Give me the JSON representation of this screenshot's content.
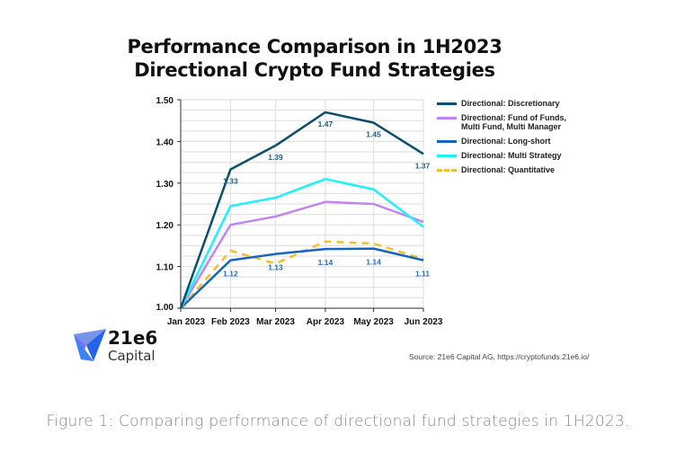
{
  "chart_data": {
    "type": "line",
    "title": [
      "Performance Comparison in 1H2023",
      "Directional Crypto Fund Strategies"
    ],
    "categories": [
      "Jan 2023",
      "Feb 2023",
      "Mar 2023",
      "Apr 2023",
      "May 2023",
      "Jun 2023"
    ],
    "x_days": [
      0,
      31,
      59,
      90,
      120,
      151
    ],
    "ylim": [
      1.0,
      1.5
    ],
    "yticks": [
      "1.00",
      "1.10",
      "1.20",
      "1.30",
      "1.40",
      "1.50"
    ],
    "grid": true,
    "legend": "right",
    "series": [
      {
        "name": "Directional: Discretionary",
        "color": "#0b4f6c",
        "dash": false,
        "values": [
          1.0,
          1.333,
          1.39,
          1.47,
          1.445,
          1.37
        ],
        "labels": [
          "",
          "1.33",
          "1.39",
          "1.47",
          "1.45",
          "1.37"
        ],
        "label_color": "#1f5f86"
      },
      {
        "name": "Directional: Fund of Funds, Multi Fund, Multi Manager",
        "color": "#c084f5",
        "dash": false,
        "values": [
          1.0,
          1.2,
          1.22,
          1.255,
          1.25,
          1.207
        ]
      },
      {
        "name": "Directional: Long-short",
        "color": "#1565c0",
        "dash": false,
        "values": [
          1.0,
          1.115,
          1.13,
          1.142,
          1.143,
          1.115
        ],
        "labels": [
          "",
          "1.12",
          "1.13",
          "1.14",
          "1.14",
          "1.11"
        ],
        "label_color": "#1e6fd0"
      },
      {
        "name": "Directional: Multi Strategy",
        "color": "#1ef2f8",
        "dash": false,
        "values": [
          1.0,
          1.245,
          1.265,
          1.31,
          1.285,
          1.195
        ]
      },
      {
        "name": "Directional: Quantitative",
        "color": "#f5be2e",
        "dash": true,
        "values": [
          1.0,
          1.138,
          1.107,
          1.16,
          1.155,
          1.118
        ]
      }
    ]
  },
  "logo": {
    "line1": "21e6",
    "line2": "Capital"
  },
  "source": "Source: 21e6 Capital AG, https://cryptofunds.21e6.io/",
  "caption": "Figure 1:  Comparing performance of directional fund strategies in 1H2023."
}
